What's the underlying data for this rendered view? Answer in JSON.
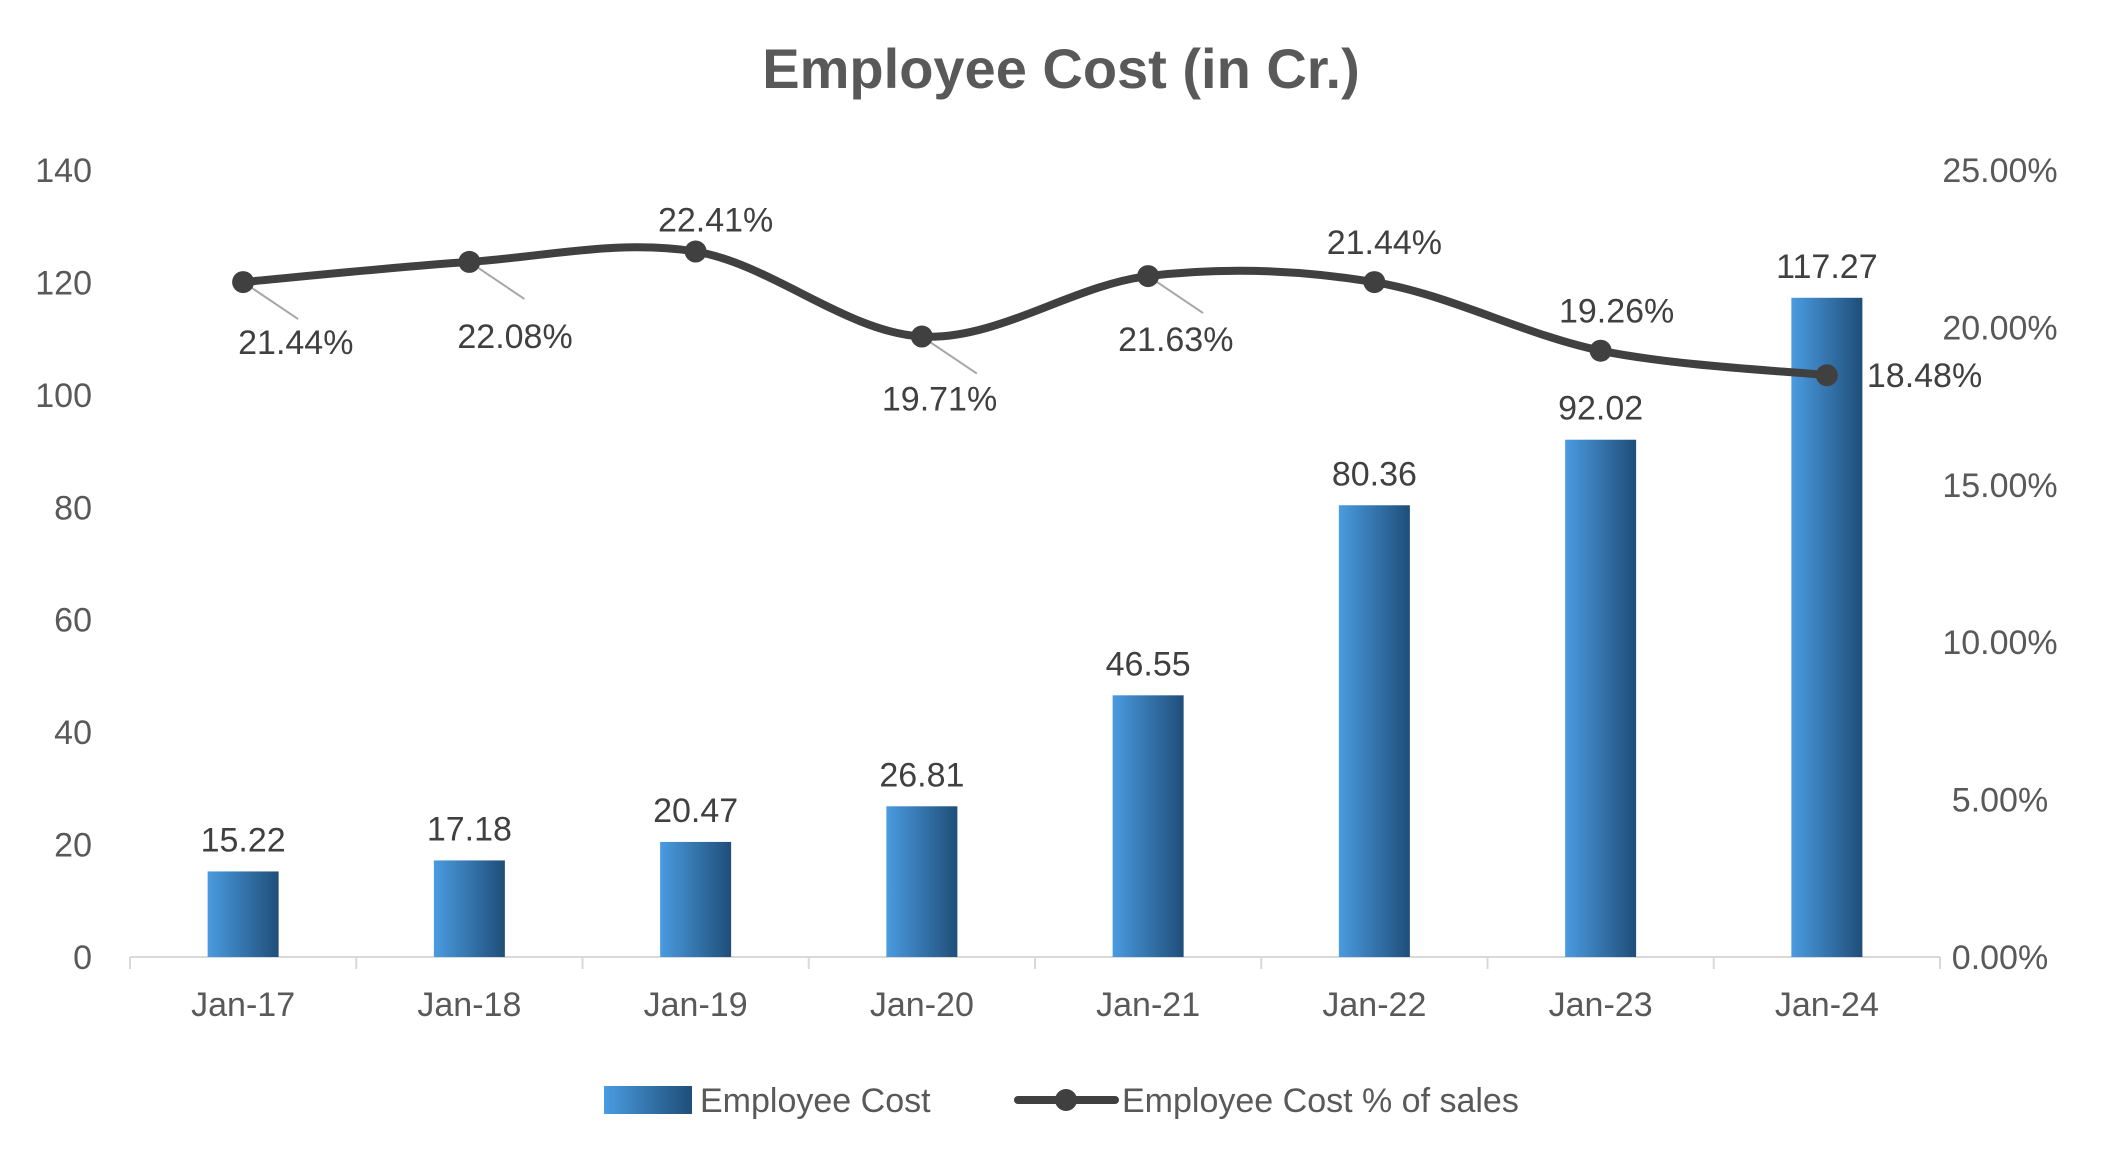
{
  "chart_data": {
    "type": "bar",
    "title": "Employee Cost (in Cr.)",
    "categories": [
      "Jan-17",
      "Jan-18",
      "Jan-19",
      "Jan-20",
      "Jan-21",
      "Jan-22",
      "Jan-23",
      "Jan-24"
    ],
    "series": [
      {
        "name": "Employee Cost",
        "type": "bar",
        "axis": "left",
        "values": [
          15.22,
          17.18,
          20.47,
          26.81,
          46.55,
          80.36,
          92.02,
          117.27
        ],
        "labels": [
          "15.22",
          "17.18",
          "20.47",
          "26.81",
          "46.55",
          "80.36",
          "92.02",
          "117.27"
        ],
        "color": "#2e75b6"
      },
      {
        "name": "Employee Cost % of sales",
        "type": "line",
        "axis": "right",
        "values": [
          21.44,
          22.08,
          22.41,
          19.71,
          21.63,
          21.44,
          19.26,
          18.48
        ],
        "labels": [
          "21.44%",
          "22.08%",
          "22.41%",
          "19.71%",
          "21.63%",
          "21.44%",
          "19.26%",
          "18.48%"
        ],
        "color": "#404040"
      }
    ],
    "y_left": {
      "ylim": [
        0,
        140
      ],
      "ticks": [
        "0",
        "20",
        "40",
        "60",
        "80",
        "100",
        "120",
        "140"
      ]
    },
    "y_right": {
      "ylim": [
        0,
        25
      ],
      "ticks": [
        "0.00%",
        "5.00%",
        "10.00%",
        "15.00%",
        "20.00%",
        "25.00%"
      ]
    },
    "grid": false,
    "legend": {
      "position": "bottom",
      "items": [
        "Employee Cost",
        "Employee Cost % of sales"
      ]
    },
    "colors": {
      "bar_light": "#4a9be0",
      "bar_dark": "#1f4e79",
      "line": "#404040",
      "text": "#595959",
      "axis": "#d9d9d9"
    }
  }
}
